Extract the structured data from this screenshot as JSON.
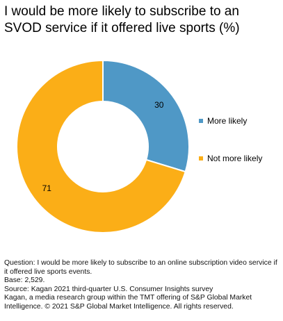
{
  "title": "I would be more likely to subscribe to an SVOD service if it offered live sports (%)",
  "chart_data": {
    "type": "pie",
    "donut": true,
    "title": "I would be more likely to subscribe to an SVOD service if it offered live sports (%)",
    "categories": [
      "More likely",
      "Not more likely"
    ],
    "values": [
      30,
      71
    ],
    "labels": [
      "30",
      "71"
    ],
    "colors": [
      "#4f98c6",
      "#fbae17"
    ],
    "legend_position": "right"
  },
  "notes": {
    "question": "Question: I would be more likely to subscribe to an online subscription video service if it offered live sports events.",
    "base": "Base: 2,529.",
    "source": "Source: Kagan 2021 third-quarter U.S. Consumer Insights survey",
    "credit": "Kagan, a media research group within the TMT offering of S&P Global Market Intelligence. © 2021 S&P Global Market Intelligence. All rights reserved."
  }
}
